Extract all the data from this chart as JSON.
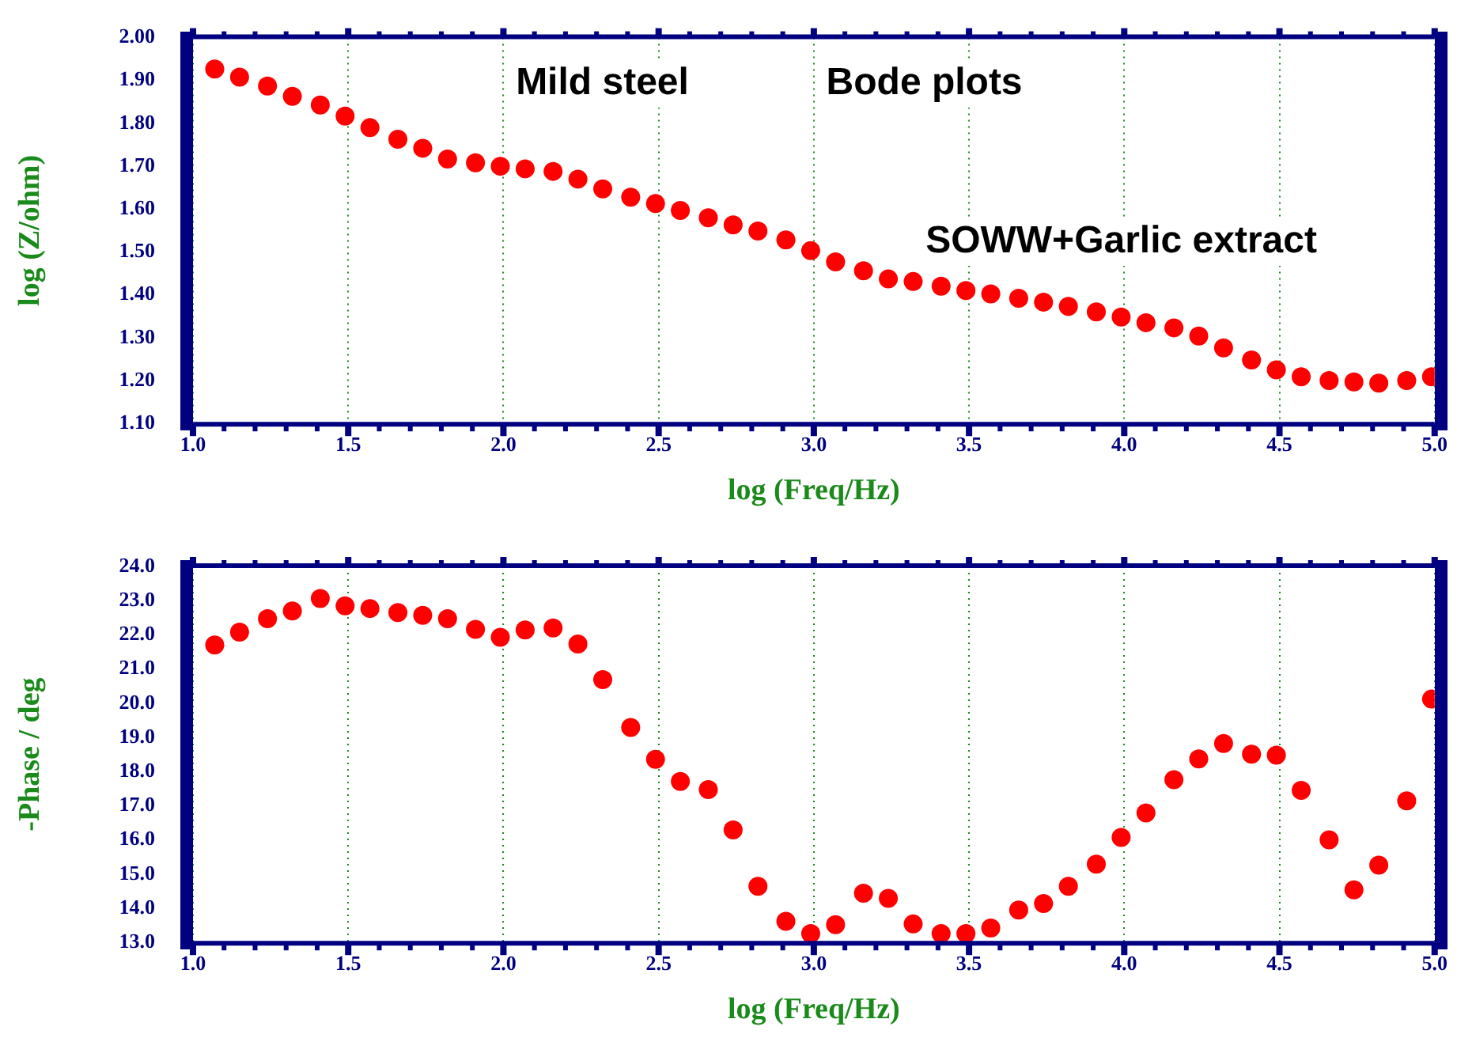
{
  "chart_data": [
    {
      "type": "scatter",
      "xlabel": "log (Freq/Hz)",
      "ylabel": "log (Z/ohm)",
      "color": "#ff0000",
      "marker": "circle",
      "grid": true,
      "annotations": [
        "Mild steel",
        "Bode plots",
        "SOWW+Garlic extract"
      ],
      "xlim": [
        1.0,
        5.0
      ],
      "xticks": [
        {
          "value": 1,
          "label": "1.0"
        },
        1.5,
        {
          "value": 2,
          "label": "2.0"
        },
        2.5,
        {
          "value": 3,
          "label": "3.0"
        },
        3.5,
        {
          "value": 4,
          "label": "4.0"
        },
        4.5,
        {
          "value": 5,
          "label": "5.0"
        }
      ],
      "ylim": [
        1.1,
        2.0
      ],
      "yticks": [
        {
          "value": 1.1,
          "label": "1.10"
        },
        {
          "value": 1.2,
          "label": "1.20"
        },
        {
          "value": 1.3,
          "label": "1.30"
        },
        {
          "value": 1.4,
          "label": "1.40"
        },
        {
          "value": 1.5,
          "label": "1.50"
        },
        {
          "value": 1.6,
          "label": "1.60"
        },
        {
          "value": 1.7,
          "label": "1.70"
        },
        {
          "value": 1.8,
          "label": "1.80"
        },
        {
          "value": 1.9,
          "label": "1.90"
        },
        {
          "value": 2.0,
          "label": "2.00"
        }
      ],
      "x": [
        1.07,
        1.15,
        1.24,
        1.32,
        1.41,
        1.49,
        1.57,
        1.66,
        1.74,
        1.82,
        1.91,
        1.99,
        2.07,
        2.16,
        2.24,
        2.32,
        2.41,
        2.49,
        2.57,
        2.66,
        2.74,
        2.82,
        2.91,
        2.99,
        3.07,
        3.16,
        3.24,
        3.32,
        3.41,
        3.49,
        3.57,
        3.66,
        3.74,
        3.82,
        3.91,
        3.99,
        4.07,
        4.16,
        4.24,
        4.32,
        4.41,
        4.49,
        4.57,
        4.66,
        4.74,
        4.82,
        4.91,
        4.99
      ],
      "values": [
        1.927,
        1.908,
        1.887,
        1.863,
        1.843,
        1.817,
        1.79,
        1.763,
        1.742,
        1.717,
        1.708,
        1.7,
        1.694,
        1.688,
        1.67,
        1.647,
        1.628,
        1.613,
        1.597,
        1.58,
        1.563,
        1.549,
        1.528,
        1.503,
        1.477,
        1.456,
        1.437,
        1.431,
        1.42,
        1.41,
        1.402,
        1.392,
        1.383,
        1.373,
        1.36,
        1.348,
        1.335,
        1.323,
        1.304,
        1.276,
        1.248,
        1.225,
        1.209,
        1.2,
        1.197,
        1.194,
        1.2,
        1.209
      ]
    },
    {
      "type": "scatter",
      "xlabel": "log (Freq/Hz)",
      "ylabel": "-Phase / deg",
      "color": "#ff0000",
      "marker": "circle",
      "grid": true,
      "xlim": [
        1.0,
        5.0
      ],
      "xticks": [
        {
          "value": 1,
          "label": "1.0"
        },
        1.5,
        {
          "value": 2,
          "label": "2.0"
        },
        2.5,
        {
          "value": 3,
          "label": "3.0"
        },
        3.5,
        {
          "value": 4,
          "label": "4.0"
        },
        4.5,
        {
          "value": 5,
          "label": "5.0"
        }
      ],
      "ylim": [
        13,
        24
      ],
      "yticks": [
        {
          "value": 13,
          "label": "13.0"
        },
        {
          "value": 14,
          "label": "14.0"
        },
        {
          "value": 15,
          "label": "15.0"
        },
        {
          "value": 16,
          "label": "16.0"
        },
        {
          "value": 17,
          "label": "17.0"
        },
        {
          "value": 18,
          "label": "18.0"
        },
        {
          "value": 19,
          "label": "19.0"
        },
        {
          "value": 20,
          "label": "20.0"
        },
        {
          "value": 21,
          "label": "21.0"
        },
        {
          "value": 22,
          "label": "22.0"
        },
        {
          "value": 23,
          "label": "23.0"
        },
        {
          "value": 24,
          "label": "24.0"
        }
      ],
      "x": [
        1.07,
        1.15,
        1.24,
        1.32,
        1.41,
        1.49,
        1.57,
        1.66,
        1.74,
        1.82,
        1.91,
        1.99,
        2.07,
        2.16,
        2.24,
        2.32,
        2.41,
        2.49,
        2.57,
        2.66,
        2.74,
        2.82,
        2.91,
        2.99,
        3.07,
        3.16,
        3.24,
        3.32,
        3.41,
        3.49,
        3.57,
        3.66,
        3.74,
        3.82,
        3.91,
        3.99,
        4.07,
        4.16,
        4.24,
        4.32,
        4.41,
        4.49,
        4.57,
        4.66,
        4.74,
        4.82,
        4.91,
        4.99
      ],
      "values": [
        21.7,
        22.08,
        22.47,
        22.7,
        23.06,
        22.85,
        22.77,
        22.65,
        22.57,
        22.47,
        22.16,
        21.93,
        22.14,
        22.2,
        21.73,
        20.69,
        19.29,
        18.36,
        17.71,
        17.47,
        16.29,
        14.64,
        13.62,
        13.26,
        13.52,
        14.44,
        14.29,
        13.54,
        13.26,
        13.26,
        13.42,
        13.95,
        14.14,
        14.64,
        15.29,
        16.07,
        16.79,
        17.76,
        18.37,
        18.82,
        18.51,
        18.48,
        17.45,
        16.0,
        14.54,
        15.26,
        17.14,
        20.12
      ]
    }
  ]
}
